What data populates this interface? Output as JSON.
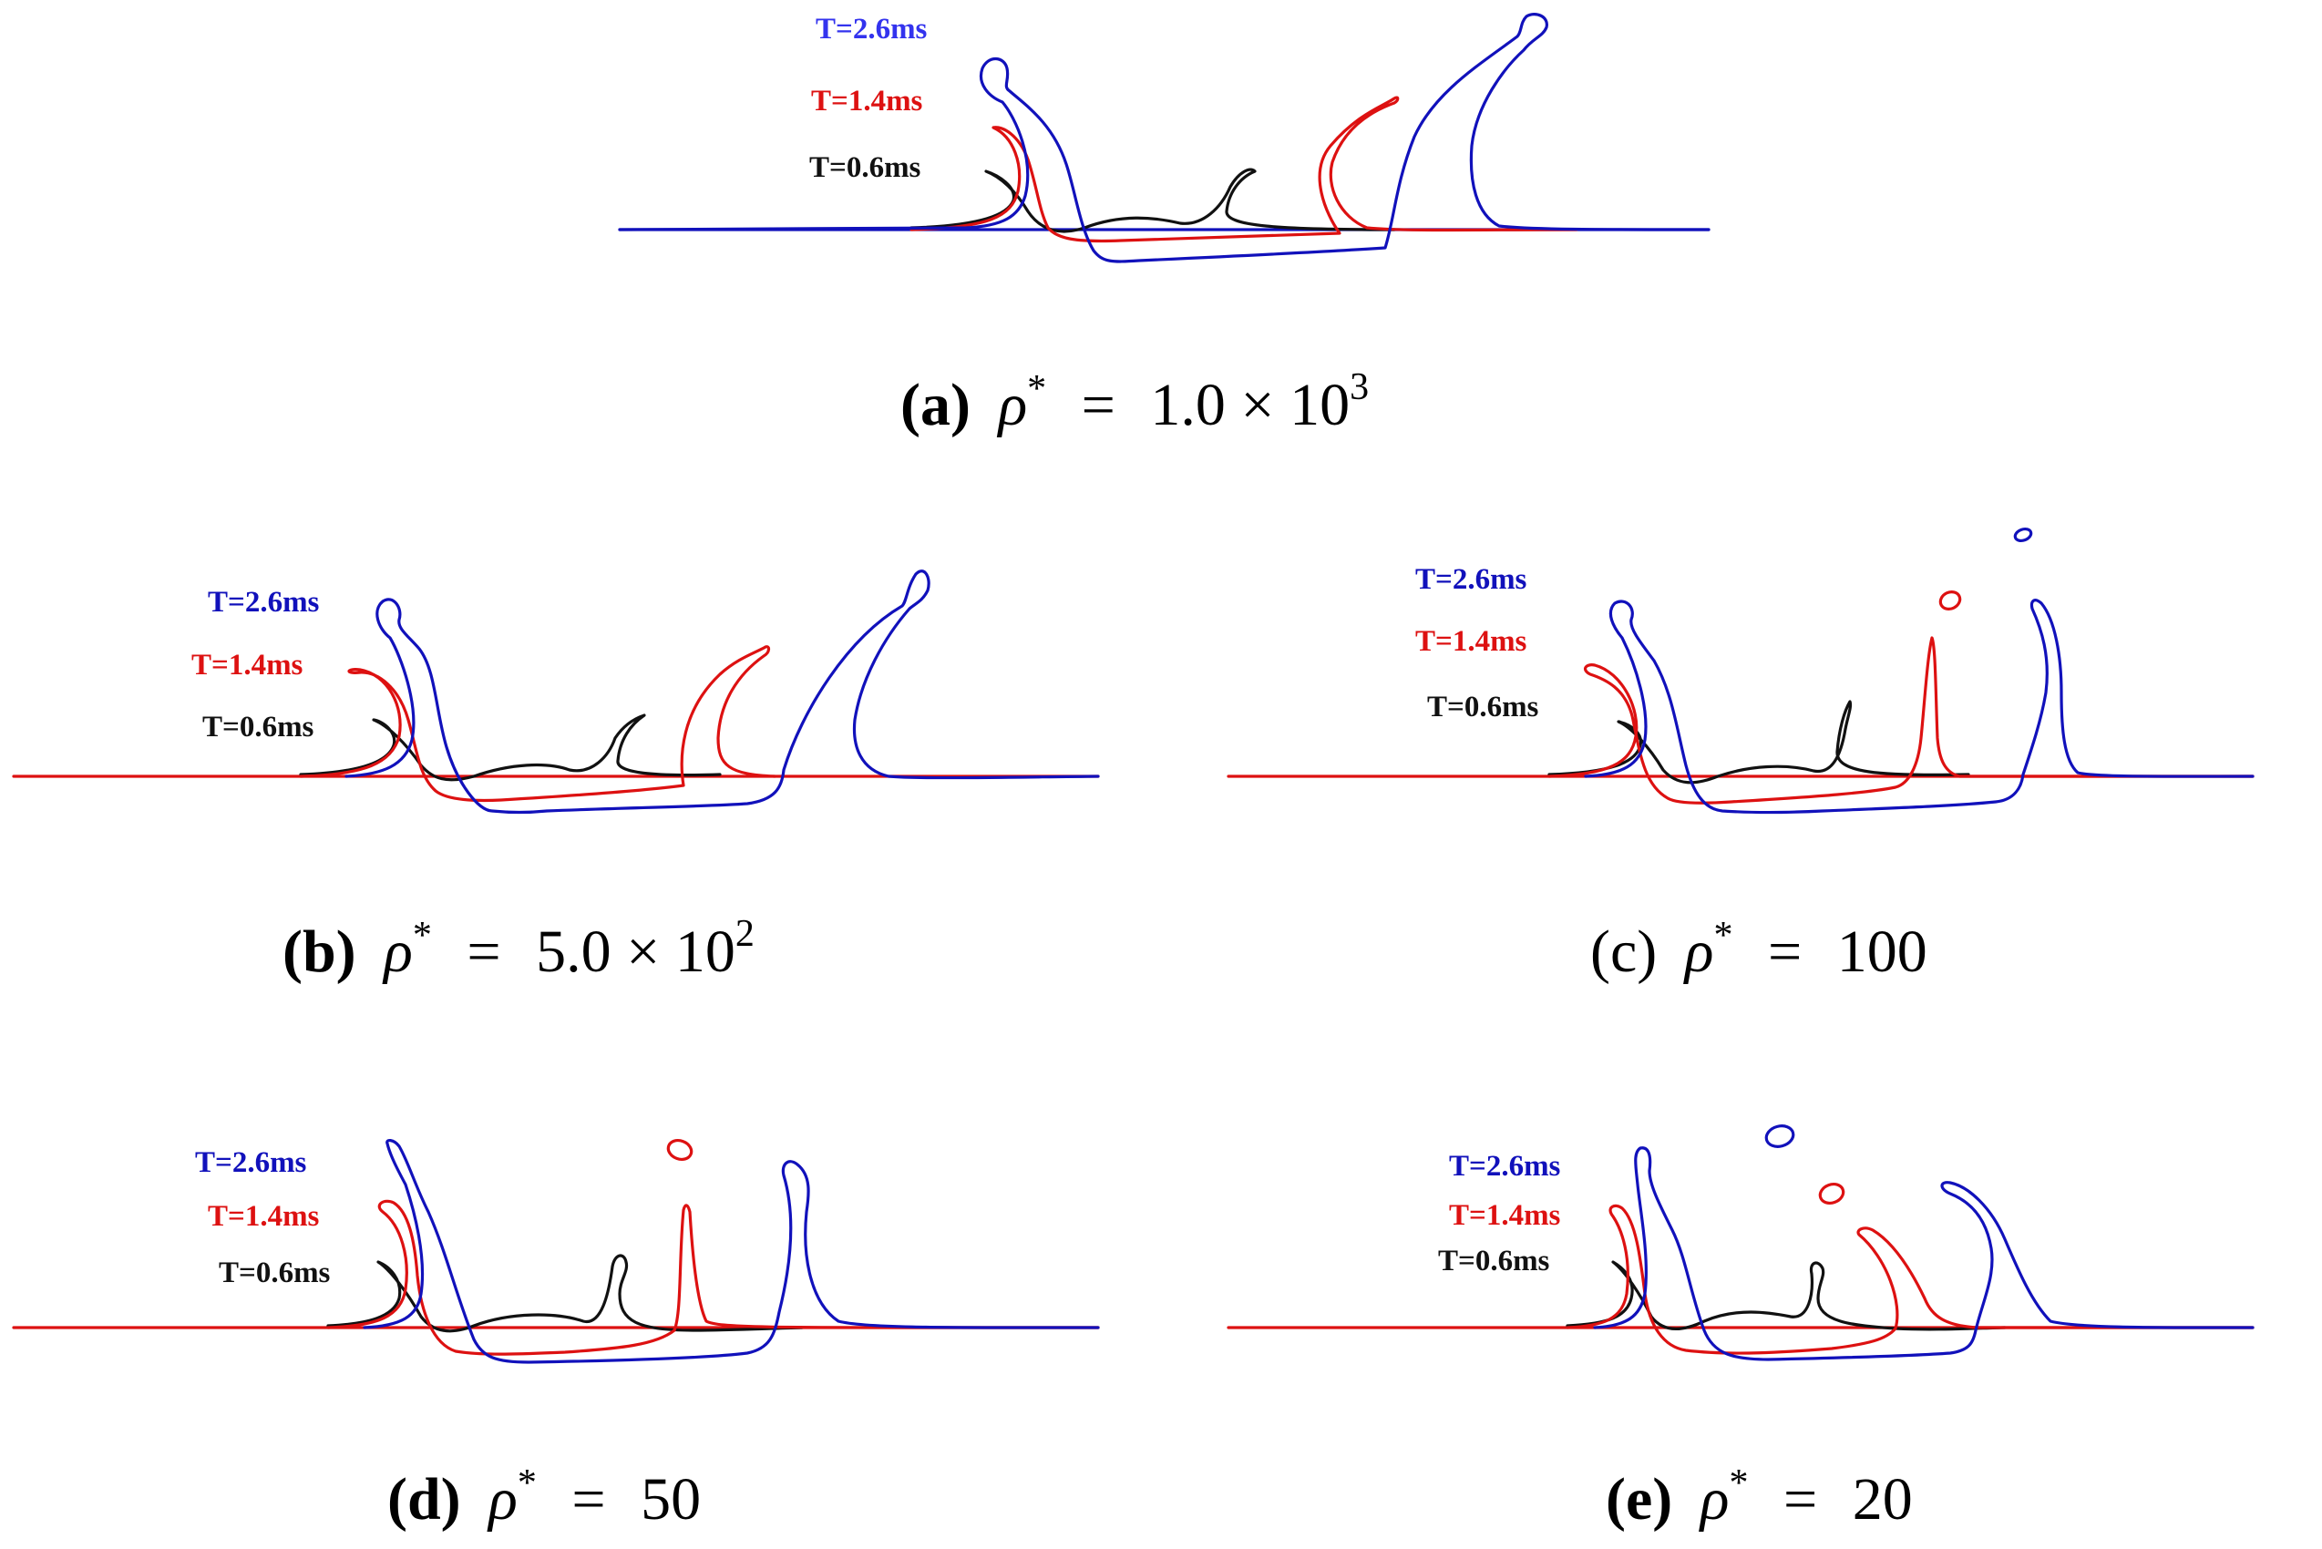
{
  "colors": {
    "black": "#111111",
    "red": "#dd1111",
    "blue": "#1111bb",
    "blue_bright": "#3333ee"
  },
  "time_labels": {
    "late": "T=2.6ms",
    "mid": "T=1.4ms",
    "early": "T=0.6ms"
  },
  "panels": [
    {
      "letter": "(a)",
      "rho": "ρ",
      "star": "*",
      "equals": "=",
      "value": "1.0 × 10",
      "exponent": "3"
    },
    {
      "letter": "(b)",
      "rho": "ρ",
      "star": "*",
      "equals": "=",
      "value": "5.0 × 10",
      "exponent": "2"
    },
    {
      "letter": "(c)",
      "rho": "ρ",
      "star": "*",
      "equals": "=",
      "value": "100",
      "exponent": ""
    },
    {
      "letter": "(d)",
      "rho": "ρ",
      "star": "*",
      "equals": "=",
      "value": "50",
      "exponent": ""
    },
    {
      "letter": "(e)",
      "rho": "ρ",
      "star": "*",
      "equals": "=",
      "value": "20",
      "exponent": ""
    }
  ]
}
